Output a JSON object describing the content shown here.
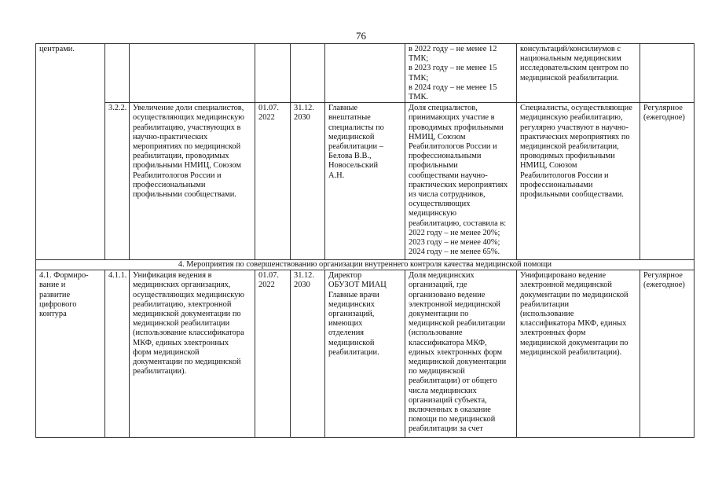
{
  "page_number": "76",
  "rows": [
    {
      "c1": "центрами.",
      "c2": "",
      "c3": "",
      "c4": "",
      "c5": "",
      "c6": "",
      "c7": "в 2022 году – не менее 12\nТМК;\nв 2023 году – не менее 15\nТМК;\nв 2024 году – не менее 15\nТМК.",
      "c8": "консультаций/консилиумов с\nнациональным медицинским\nисследовательским центром по\nмедицинской реабилитации.",
      "c9": ""
    },
    {
      "c2": "3.2.2.",
      "c3": "Увеличение доли специалистов,\nосуществляющих медицинскую\nреабилитацию, участвующих в\nнаучно-практических\nмероприятиях по медицинской\nреабилитации, проводимых\nпрофильными НМИЦ, Союзом\nРеабилитологов России и\nпрофессиональными\nпрофильными сообществами.",
      "c4": "01.07.\n2022",
      "c5": "31.12.\n2030",
      "c6": "Главные\nвнештатные\nспециалисты по\nмедицинской\nреабилитации –\nБелова В.В.,\nНовосельский\nА.Н.",
      "c7": "Доля специалистов,\nпринимающих участие в\nпроводимых профильными\nНМИЦ, Союзом\nРеабилитологов России и\nпрофессиональными\nпрофильными\nсообществами научно-\nпрактических мероприятиях\nиз числа сотрудников,\nосуществляющих\nмедицинскую\nреабилитацию, составила в:\n2022 году – не менее 20%;\n2023 году – не менее 40%;\n2024 году – не менее 65%.",
      "c8": "Специалисты, осуществляющие\nмедицинскую реабилитацию,\nрегулярно участвуют в научно-\nпрактических мероприятиях по\nмедицинской реабилитации,\nпроводимых профильными\nНМИЦ, Союзом\nРеабилитологов России и\nпрофессиональными\nпрофильными сообществами.",
      "c9": "Регулярное\n(ежегодное)"
    }
  ],
  "section_title": "4. Мероприятия по совершенствованию организации внутреннего контроля качества медицинской помощи",
  "row3": {
    "c1": "4.1. Формиро-\nвание и\nразвитие\nцифрового\nконтура",
    "c2": "4.1.1.",
    "c3": "Унификация ведения в\nмедицинских организациях,\nосуществляющих медицинскую\nреабилитацию, электронной\nмедицинской документации по\nмедицинской реабилитации\n(использование классификатора\nМКФ, единых электронных\nформ медицинской\nдокументации по медицинской\nреабилитации).",
    "c4": "01.07.\n2022",
    "c5": "31.12.\n2030",
    "c6": "Директор\nОБУЗОТ МИАЦ\nГлавные врачи\nмедицинских\nорганизаций,\nимеющих\nотделения\nмедицинской\nреабилитации.",
    "c7": "Доля медицинских\nорганизаций, где\nорганизовано ведение\nэлектронной медицинской\nдокументации по\nмедицинской реабилитации\n(использование\nклассификатора МКФ,\nединых электронных форм\nмедицинской документации\nпо медицинской\nреабилитации) от общего\nчисла медицинских\nорганизаций субъекта,\nвключенных в оказание\nпомощи по медицинской\nреабилитации за счет",
    "c8": "Унифицировано ведение\nэлектронной медицинской\nдокументации по медицинской\nреабилитации\n (использование\nклассификатора МКФ, единых\nэлектронных форм\nмедицинской документации по\nмедицинской реабилитации).",
    "c9": "Регулярное\n(ежегодное)"
  }
}
